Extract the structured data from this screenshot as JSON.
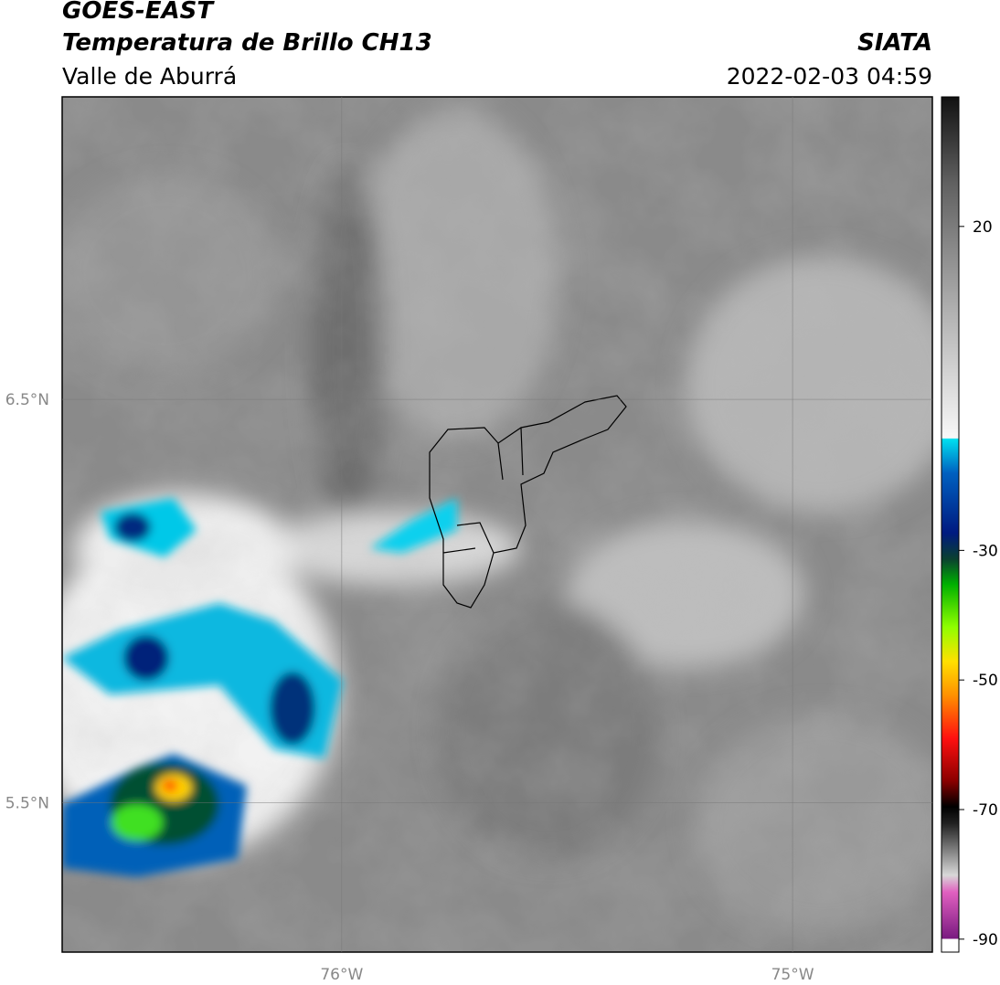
{
  "header": {
    "title": "GOES-EAST",
    "subtitle": "Temperatura de Brillo CH13",
    "region": "Valle de Aburrá",
    "source": "SIATA",
    "datetime": "2022-02-03 04:59"
  },
  "map": {
    "lonlim": [
      -76.62,
      -74.69
    ],
    "latlim": [
      5.13,
      7.25
    ],
    "lonticks": [
      {
        "value": -76,
        "label": "76°W"
      },
      {
        "value": -75,
        "label": "75°W"
      }
    ],
    "latticks": [
      {
        "value": 6.5,
        "label": "6.5°N"
      },
      {
        "value": 5.5,
        "label": "5.5°N"
      }
    ]
  },
  "colorbar": {
    "lim": [
      -92,
      40
    ],
    "ticks": [
      20,
      -30,
      -50,
      -70,
      -90
    ]
  }
}
